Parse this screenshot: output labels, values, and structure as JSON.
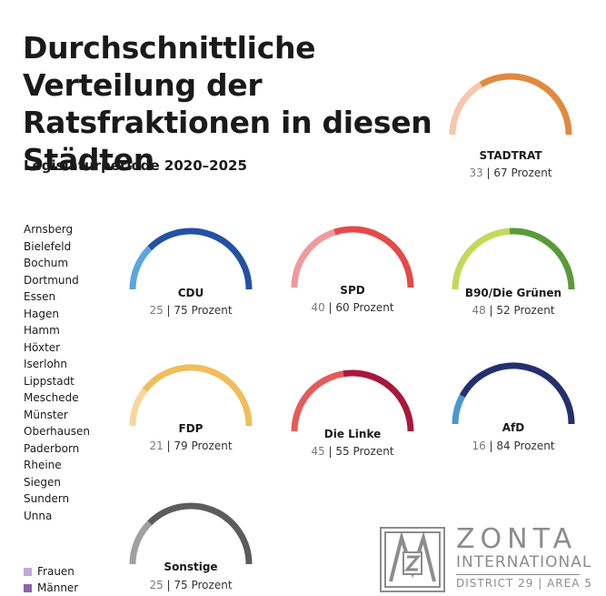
{
  "title": "Durchschnittliche Verteilung der Ratsfraktionen in diesen Städten",
  "subtitle": "Legislaturperiode 2020–2025",
  "cities": [
    "Arnsberg",
    "Bielefeld",
    "Bochum",
    "Dortmund",
    "Essen",
    "Hagen",
    "Hamm",
    "Höxter",
    "Iserlohn",
    "Lippstadt",
    "Meschede",
    "Münster",
    "Oberhausen",
    "Paderborn",
    "Rheine",
    "Siegen",
    "Sundern",
    "Unna"
  ],
  "legend": [
    {
      "label": "Frauen",
      "color": "#c2a8d6"
    },
    {
      "label": "Männer",
      "color": "#8e63a8"
    }
  ],
  "unit_label": "Prozent",
  "chart_data": {
    "type": "gauge",
    "series": [
      {
        "name": "STADTRAT",
        "women": 33,
        "men": 67,
        "color_women": "#f6c7ad",
        "color_men": "#e08a3e"
      },
      {
        "name": "CDU",
        "women": 25,
        "men": 75,
        "color_women": "#5aa6dc",
        "color_men": "#2451a4"
      },
      {
        "name": "SPD",
        "women": 40,
        "men": 60,
        "color_women": "#ee9a9c",
        "color_men": "#e34a4a"
      },
      {
        "name": "B90/Die Grünen",
        "women": 48,
        "men": 52,
        "color_women": "#c3d95a",
        "color_men": "#5a9a3a"
      },
      {
        "name": "FDP",
        "women": 21,
        "men": 79,
        "color_women": "#f8d79c",
        "color_men": "#f0bd5a"
      },
      {
        "name": "Die Linke",
        "women": 45,
        "men": 55,
        "color_women": "#e65a5a",
        "color_men": "#a8183c"
      },
      {
        "name": "AfD",
        "women": 16,
        "men": 84,
        "color_women": "#4a97d2",
        "color_men": "#24306e"
      },
      {
        "name": "Sonstige",
        "women": 25,
        "men": 75,
        "color_women": "#a0a0a0",
        "color_men": "#5c5c5c"
      }
    ]
  },
  "logo": {
    "word": "ZONTA",
    "sub": "INTERNATIONAL",
    "district": "DISTRICT 29 | AREA 5"
  }
}
